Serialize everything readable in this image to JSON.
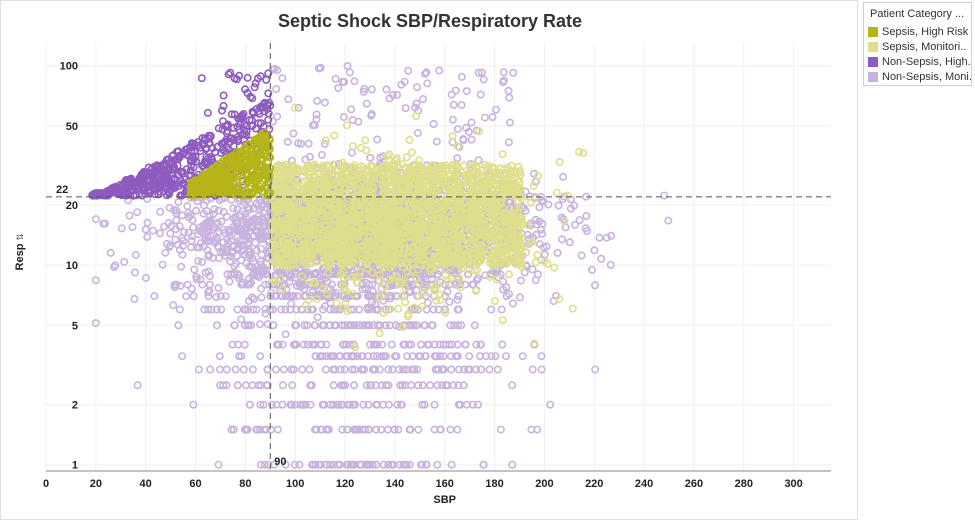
{
  "chart_data": {
    "type": "scatter",
    "title": "Septic Shock SBP/Respiratory Rate",
    "xlabel": "SBP",
    "ylabel": "Resp",
    "xlim": [
      0,
      315
    ],
    "ylim": [
      0.93,
      130
    ],
    "y_scale": "log",
    "x_ticks": [
      "0",
      "20",
      "40",
      "60",
      "80",
      "100",
      "120",
      "140",
      "160",
      "180",
      "200",
      "220",
      "240",
      "260",
      "280",
      "300"
    ],
    "y_ticks": [
      "1",
      "2",
      "5",
      "10",
      "20",
      "50",
      "100"
    ],
    "reference_lines": [
      {
        "axis": "y",
        "value": 22,
        "label": "22"
      },
      {
        "axis": "x",
        "value": 90,
        "label": "90"
      }
    ],
    "marker": "open-circle",
    "legend_position": "right",
    "legend_title": "Patient Category ...",
    "series": [
      {
        "name": "Sepsis, High Risk ..",
        "color": "#b5b51a",
        "sbp_range": [
          45,
          90
        ],
        "resp_range": [
          22,
          48
        ]
      },
      {
        "name": "Sepsis, Monitori..",
        "color": "#dede8c",
        "sbp_range": [
          90,
          245
        ],
        "resp_range": [
          1,
          100
        ]
      },
      {
        "name": "Non-Sepsis, High..",
        "color": "#8e5bbf",
        "sbp_range": [
          20,
          90
        ],
        "resp_range": [
          22,
          100
        ]
      },
      {
        "name": "Non-Sepsis, Moni..",
        "color": "#c8b3de",
        "sbp_range": [
          20,
          300
        ],
        "resp_range": [
          1,
          100
        ]
      }
    ]
  }
}
